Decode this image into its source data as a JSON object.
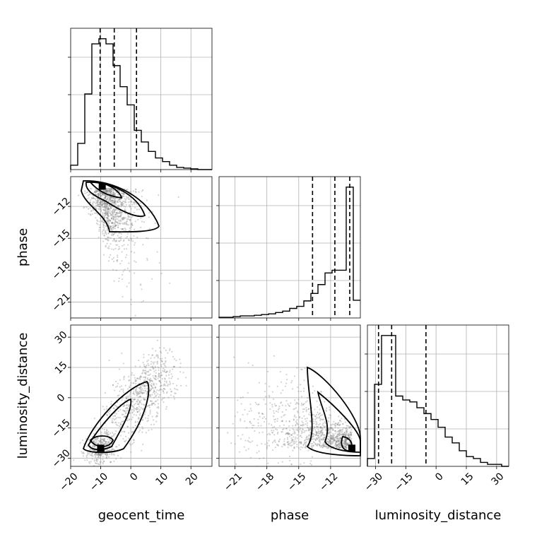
{
  "chart_data": {
    "type": "corner",
    "parameters": [
      "geocent_time",
      "phase",
      "luminosity_distance"
    ],
    "ranges": {
      "geocent_time": [
        -20,
        27
      ],
      "phase": [
        -22.5,
        -9.2
      ],
      "luminosity_distance": [
        -34,
        36
      ]
    },
    "ticks": {
      "geocent_time": [
        -20,
        -10,
        0,
        10,
        20
      ],
      "phase": [
        -21,
        -18,
        -15,
        -12
      ],
      "luminosity_distance": [
        -30,
        -15,
        0,
        15,
        30
      ]
    },
    "tick_labels": {
      "geocent_time": [
        "−20",
        "−10",
        "0",
        "10",
        "20"
      ],
      "phase": [
        "−21",
        "−18",
        "−15",
        "−12"
      ],
      "luminosity_distance": [
        "−30",
        "−15",
        "0",
        "15",
        "30"
      ]
    },
    "histograms": {
      "geocent_time": {
        "edges": [
          -20,
          -17.65,
          -15.3,
          -12.95,
          -10.6,
          -8.25,
          -5.9,
          -3.55,
          -1.2,
          1.15,
          3.5,
          5.85,
          8.2,
          10.55,
          12.9,
          15.25,
          17.6,
          19.95,
          22.3,
          24.65,
          27
        ],
        "counts": [
          6,
          36,
          104,
          173,
          180,
          173,
          143,
          114,
          89,
          54,
          38,
          25,
          16,
          11,
          6,
          3,
          2,
          1,
          0,
          0
        ],
        "quantiles": [
          -10.2,
          -5.5,
          1.9
        ]
      },
      "phase": {
        "edges": [
          -22.5,
          -21.835,
          -21.17,
          -20.505,
          -19.84,
          -19.175,
          -18.51,
          -17.845,
          -17.18,
          -16.515,
          -15.85,
          -15.185,
          -14.52,
          -13.855,
          -13.19,
          -12.525,
          -11.86,
          -11.195,
          -10.53,
          -9.865,
          -9.2
        ],
        "counts": [
          1,
          1,
          2,
          3,
          3,
          4,
          5,
          6,
          8,
          10,
          14,
          17,
          25,
          36,
          49,
          66,
          70,
          70,
          192,
          26
        ],
        "quantiles": [
          -13.7,
          -11.6,
          -10.2
        ]
      },
      "luminosity_distance": {
        "edges": [
          -34,
          -30.5,
          -27,
          -23.5,
          -20,
          -16.5,
          -13,
          -9.5,
          -6,
          -2.5,
          1,
          4.5,
          8,
          11.5,
          15,
          18.5,
          22,
          25.5,
          29,
          32.5,
          36
        ],
        "counts": [
          4,
          42,
          67,
          67,
          36,
          34,
          33,
          30,
          27,
          24,
          20,
          15,
          12,
          8,
          5,
          4,
          2,
          1,
          1,
          0
        ],
        "quantiles": [
          -28.5,
          -22,
          -5
        ]
      }
    },
    "pairs": [
      {
        "x": "geocent_time",
        "y": "phase",
        "peak": [
          -9.5,
          -10.1
        ]
      },
      {
        "x": "geocent_time",
        "y": "luminosity_distance",
        "peak": [
          -10,
          -25
        ]
      },
      {
        "x": "phase",
        "y": "luminosity_distance",
        "peak": [
          -10,
          -25
        ]
      }
    ],
    "grid": true,
    "colors": {
      "line": "#000000",
      "points": "#808080",
      "grid": "#b0b0b0"
    }
  }
}
